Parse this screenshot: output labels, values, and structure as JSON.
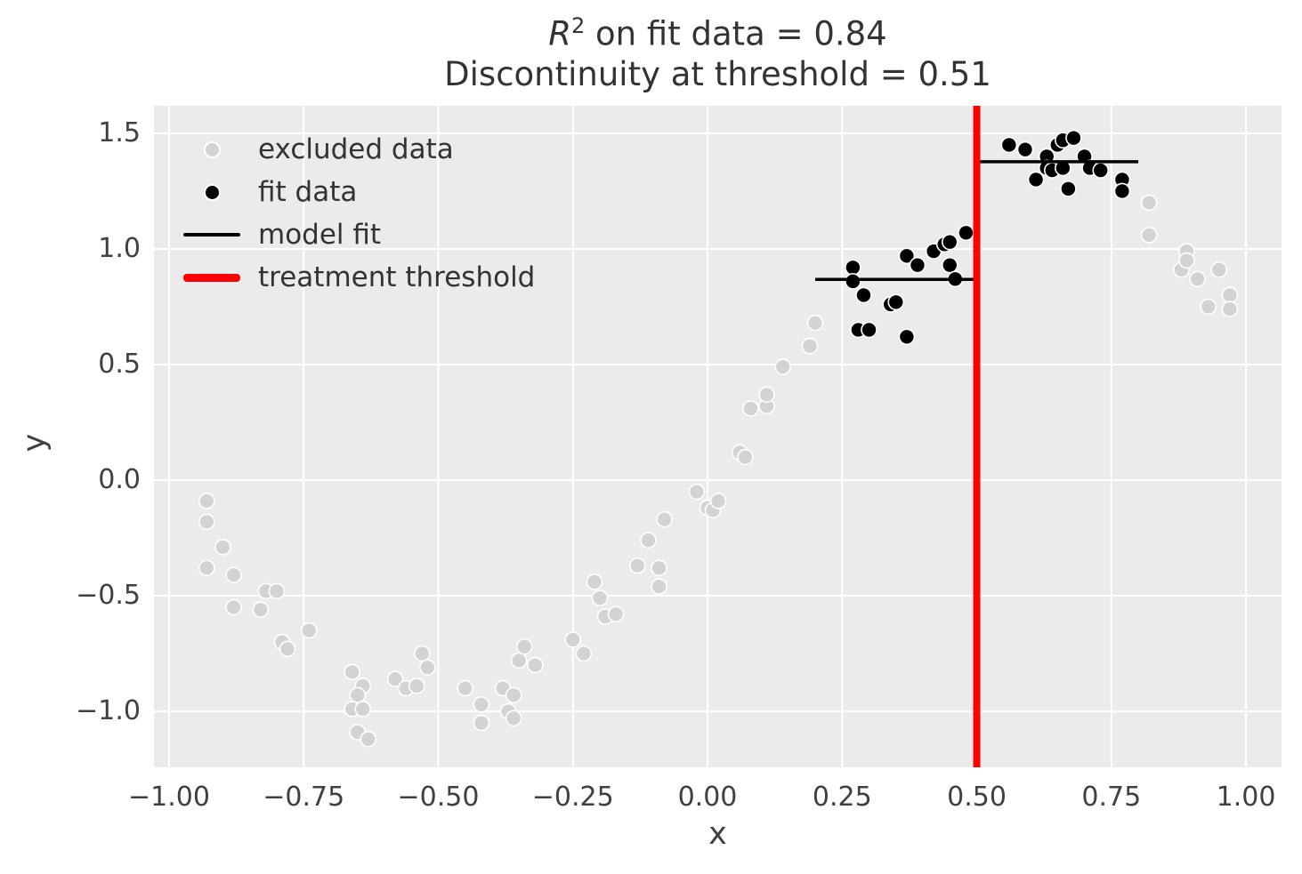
{
  "title": {
    "line1_r": "R",
    "line1_sup": "2",
    "line1_rest": " on fit data = 0.84",
    "line2": "Discontinuity at threshold = 0.51"
  },
  "legend": {
    "items": [
      {
        "label": "excluded data",
        "marker": "dot",
        "color": "#d3d3d3"
      },
      {
        "label": "fit data",
        "marker": "dot",
        "color": "#000000"
      },
      {
        "label": "model fit",
        "marker": "line",
        "color": "#000000"
      },
      {
        "label": "treatment threshold",
        "marker": "thick-line",
        "color": "#ff0000"
      }
    ]
  },
  "chart_data": {
    "type": "scatter",
    "title": "R^2 on fit data = 0.84 | Discontinuity at threshold = 0.51",
    "xlabel": "x",
    "ylabel": "y",
    "grid": true,
    "grid_color": "#ffffff",
    "background_color": "#ebebeb",
    "legend_position": "upper left",
    "xlim": [
      -1.028,
      1.066
    ],
    "ylim": [
      -1.242,
      1.619
    ],
    "x_ticks": [
      {
        "value": -1.0,
        "label": "−1.00"
      },
      {
        "value": -0.75,
        "label": "−0.75"
      },
      {
        "value": -0.5,
        "label": "−0.50"
      },
      {
        "value": -0.25,
        "label": "−0.25"
      },
      {
        "value": 0.0,
        "label": "0.00"
      },
      {
        "value": 0.25,
        "label": "0.25"
      },
      {
        "value": 0.5,
        "label": "0.50"
      },
      {
        "value": 0.75,
        "label": "0.75"
      },
      {
        "value": 1.0,
        "label": "1.00"
      }
    ],
    "y_ticks": [
      {
        "value": -1.0,
        "label": "−1.0"
      },
      {
        "value": -0.5,
        "label": "−0.5"
      },
      {
        "value": 0.0,
        "label": "0.0"
      },
      {
        "value": 0.5,
        "label": "0.5"
      },
      {
        "value": 1.0,
        "label": "1.0"
      },
      {
        "value": 1.5,
        "label": "1.5"
      }
    ],
    "series": [
      {
        "name": "excluded data",
        "type": "scatter",
        "color": "#d3d3d3",
        "points": [
          [
            -0.93,
            -0.09
          ],
          [
            -0.93,
            -0.18
          ],
          [
            -0.9,
            -0.29
          ],
          [
            -0.93,
            -0.38
          ],
          [
            -0.88,
            -0.41
          ],
          [
            -0.82,
            -0.48
          ],
          [
            -0.8,
            -0.48
          ],
          [
            -0.88,
            -0.55
          ],
          [
            -0.83,
            -0.56
          ],
          [
            -0.74,
            -0.65
          ],
          [
            -0.79,
            -0.7
          ],
          [
            -0.78,
            -0.73
          ],
          [
            -0.66,
            -0.83
          ],
          [
            -0.64,
            -0.89
          ],
          [
            -0.65,
            -0.93
          ],
          [
            -0.66,
            -0.99
          ],
          [
            -0.64,
            -0.99
          ],
          [
            -0.65,
            -1.09
          ],
          [
            -0.63,
            -1.12
          ],
          [
            -0.58,
            -0.86
          ],
          [
            -0.56,
            -0.9
          ],
          [
            -0.54,
            -0.89
          ],
          [
            -0.53,
            -0.75
          ],
          [
            -0.52,
            -0.81
          ],
          [
            -0.45,
            -0.9
          ],
          [
            -0.42,
            -0.97
          ],
          [
            -0.42,
            -1.05
          ],
          [
            -0.38,
            -0.9
          ],
          [
            -0.37,
            -1.0
          ],
          [
            -0.36,
            -0.93
          ],
          [
            -0.36,
            -1.03
          ],
          [
            -0.35,
            -0.78
          ],
          [
            -0.34,
            -0.72
          ],
          [
            -0.32,
            -0.8
          ],
          [
            -0.25,
            -0.69
          ],
          [
            -0.23,
            -0.75
          ],
          [
            -0.21,
            -0.44
          ],
          [
            -0.2,
            -0.51
          ],
          [
            -0.19,
            -0.59
          ],
          [
            -0.17,
            -0.58
          ],
          [
            -0.13,
            -0.37
          ],
          [
            -0.11,
            -0.26
          ],
          [
            -0.09,
            -0.38
          ],
          [
            -0.09,
            -0.46
          ],
          [
            -0.08,
            -0.17
          ],
          [
            -0.02,
            -0.05
          ],
          [
            0.0,
            -0.12
          ],
          [
            0.01,
            -0.13
          ],
          [
            0.02,
            -0.09
          ],
          [
            0.06,
            0.12
          ],
          [
            0.07,
            0.1
          ],
          [
            0.08,
            0.31
          ],
          [
            0.11,
            0.32
          ],
          [
            0.11,
            0.37
          ],
          [
            0.14,
            0.49
          ],
          [
            0.19,
            0.58
          ],
          [
            0.2,
            0.68
          ],
          [
            0.82,
            1.2
          ],
          [
            0.82,
            1.06
          ],
          [
            0.88,
            0.91
          ],
          [
            0.89,
            0.99
          ],
          [
            0.89,
            0.95
          ],
          [
            0.91,
            0.87
          ],
          [
            0.93,
            0.75
          ],
          [
            0.95,
            0.91
          ],
          [
            0.97,
            0.8
          ],
          [
            0.97,
            0.74
          ]
        ]
      },
      {
        "name": "fit data",
        "type": "scatter",
        "color": "#000000",
        "points": [
          [
            0.27,
            0.92
          ],
          [
            0.27,
            0.86
          ],
          [
            0.29,
            0.8
          ],
          [
            0.28,
            0.65
          ],
          [
            0.3,
            0.65
          ],
          [
            0.34,
            0.76
          ],
          [
            0.35,
            0.77
          ],
          [
            0.37,
            0.97
          ],
          [
            0.37,
            0.62
          ],
          [
            0.39,
            0.93
          ],
          [
            0.42,
            0.99
          ],
          [
            0.44,
            1.02
          ],
          [
            0.45,
            1.03
          ],
          [
            0.45,
            0.93
          ],
          [
            0.46,
            0.87
          ],
          [
            0.48,
            1.07
          ],
          [
            0.56,
            1.45
          ],
          [
            0.59,
            1.43
          ],
          [
            0.61,
            1.3
          ],
          [
            0.63,
            1.4
          ],
          [
            0.63,
            1.35
          ],
          [
            0.64,
            1.34
          ],
          [
            0.65,
            1.45
          ],
          [
            0.66,
            1.47
          ],
          [
            0.66,
            1.35
          ],
          [
            0.67,
            1.26
          ],
          [
            0.68,
            1.48
          ],
          [
            0.7,
            1.4
          ],
          [
            0.71,
            1.35
          ],
          [
            0.73,
            1.34
          ],
          [
            0.77,
            1.3
          ],
          [
            0.77,
            1.25
          ]
        ]
      },
      {
        "name": "model fit",
        "type": "line",
        "color": "#000000",
        "segments": [
          {
            "x1": 0.2,
            "x2": 0.5,
            "y": 0.868
          },
          {
            "x1": 0.5,
            "x2": 0.8,
            "y": 1.377
          }
        ]
      },
      {
        "name": "treatment threshold",
        "type": "vline",
        "color": "#ff0000",
        "x": 0.5
      }
    ],
    "annotations": {
      "r_squared_on_fit_data": 0.84,
      "discontinuity_at_threshold": 0.51
    }
  }
}
